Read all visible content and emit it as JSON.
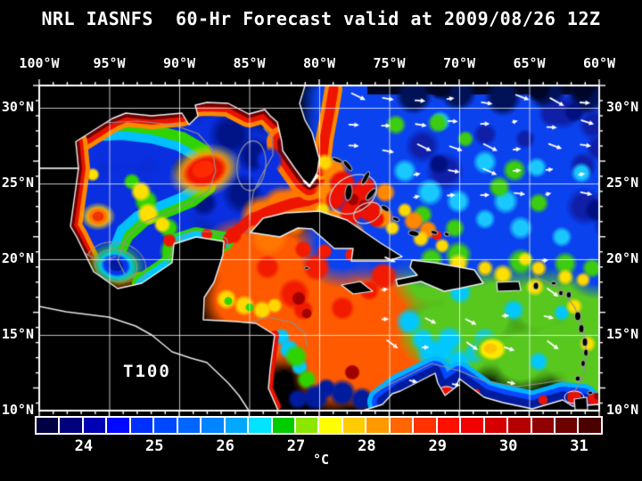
{
  "title": "NRL IASNFS  60-Hr Forecast valid at 2009/08/26 12Z",
  "map": {
    "annotation_label": "T100",
    "x_axis": {
      "tick_labels": [
        "100°W",
        "95°W",
        "90°W",
        "85°W",
        "80°W",
        "75°W",
        "70°W",
        "65°W",
        "60°W"
      ]
    },
    "y_axis_left": {
      "tick_labels": [
        "30°N",
        "25°N",
        "20°N",
        "15°N",
        "10°N"
      ]
    },
    "y_axis_right": {
      "tick_labels": [
        "30°N",
        "25°N",
        "20°N",
        "15°N",
        "10°N"
      ]
    }
  },
  "colorbar": {
    "unit_label": "°C",
    "tick_labels": [
      "24",
      "25",
      "26",
      "27",
      "28",
      "29",
      "30",
      "31"
    ],
    "segment_colors": [
      "#000042",
      "#00007f",
      "#0000b4",
      "#0008ff",
      "#0030ff",
      "#0048ff",
      "#0066ff",
      "#0084ff",
      "#00a8ff",
      "#00e4ff",
      "#00cc00",
      "#8ce600",
      "#ffff00",
      "#ffcc00",
      "#ff9900",
      "#ff6600",
      "#ff3300",
      "#ff0f00",
      "#f00000",
      "#d60000",
      "#b40000",
      "#910000",
      "#6e0000",
      "#4b0000"
    ]
  },
  "colors": {
    "background": "#000000",
    "text": "#ffffff",
    "grid_line": "#ffffff",
    "coastline": "#f0f0f0",
    "bathy_contour": "#909090",
    "land": "#000000",
    "wind_arrow": "#ffffff"
  }
}
